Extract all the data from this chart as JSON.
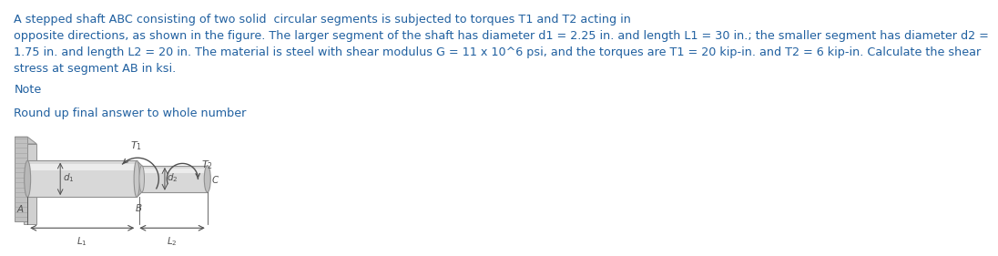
{
  "title_text_line1": "A stepped shaft ABC consisting of two solid  circular segments is subjected to torques T1 and T2 acting in",
  "title_text_line2": "opposite directions, as shown in the figure. The larger segment of the shaft has diameter d1 = 2.25 in. and length L1 = 30 in.; the smaller segment has diameter d2 =",
  "title_text_line3": "1.75 in. and length L2 = 20 in. The material is steel with shear modulus G = 11 x 10^6 psi, and the torques are T1 = 20 kip-in. and T2 = 6 kip-in. Calculate the shear",
  "title_text_line4": "stress at segment AB in ksi.",
  "note_text": "Note",
  "round_text": "Round up final answer to whole number",
  "text_color": "#2060a0",
  "bg_color": "#ffffff",
  "fig_width": 11.58,
  "fig_height": 3.25,
  "label_color": "#505050"
}
